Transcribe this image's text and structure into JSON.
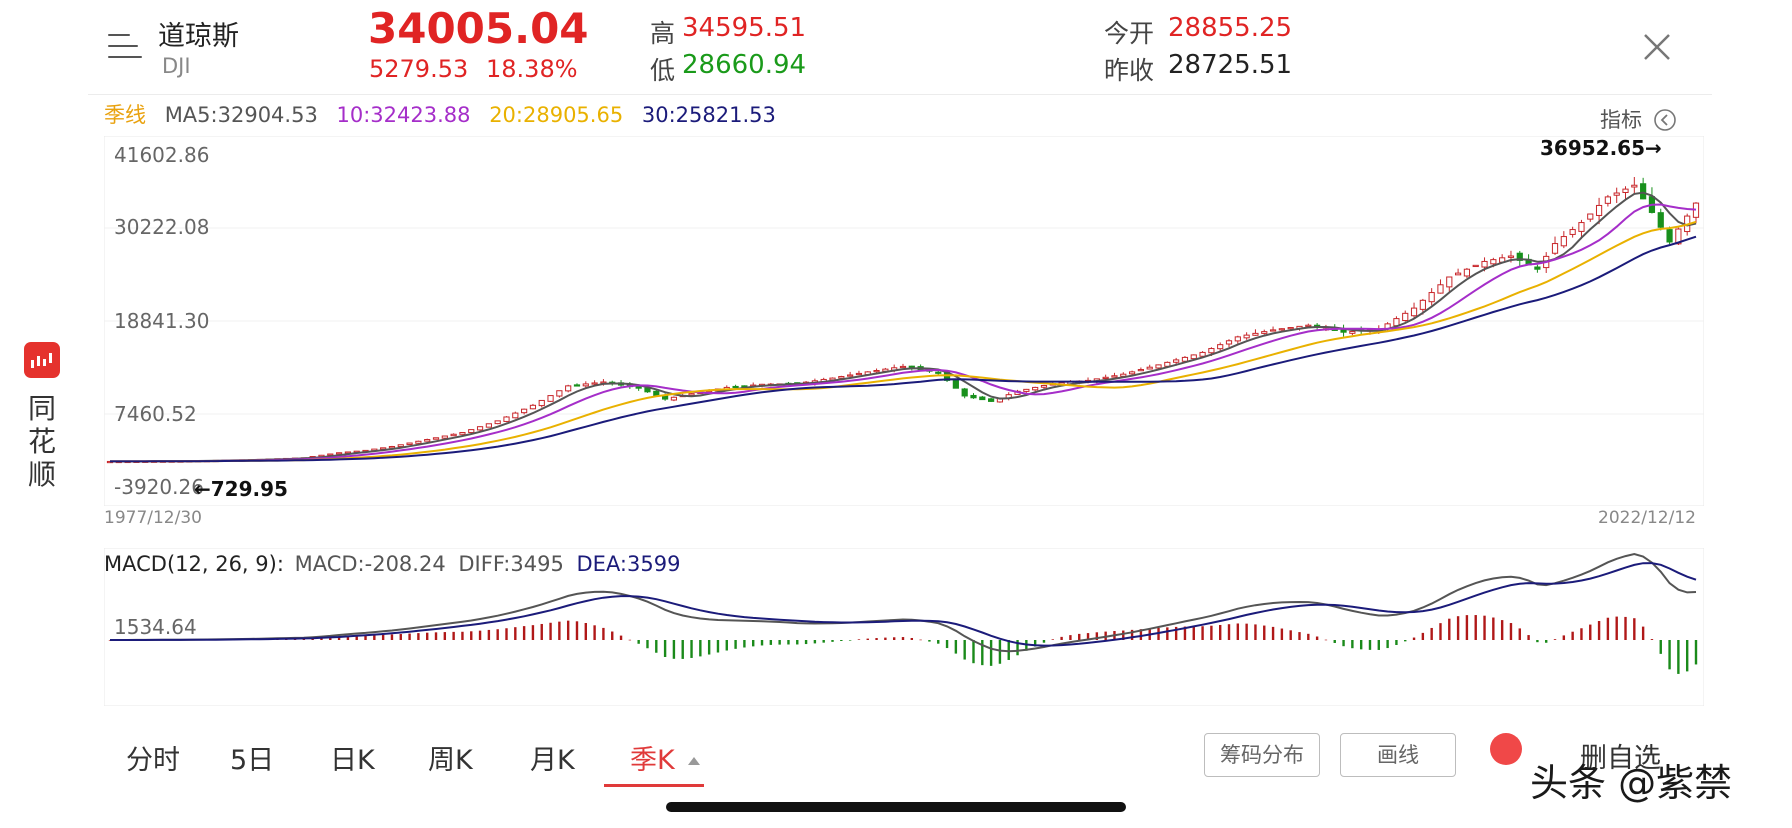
{
  "header": {
    "name": "道琼斯",
    "code": "DJI",
    "price": "34005.04",
    "change": "5279.53",
    "change_pct": "18.38%",
    "high_label": "高",
    "high_value": "34595.51",
    "low_label": "低",
    "low_value": "28660.94",
    "open_label": "今开",
    "open_value": "28855.25",
    "prev_close_label": "昨收",
    "prev_close_value": "28725.51",
    "colors": {
      "up": "#e02424",
      "down": "#1a9a1a",
      "text": "#222222"
    }
  },
  "ma_legend": {
    "period": "季线",
    "ma5": "MA5:32904.53",
    "ma10": "10:32423.88",
    "ma20": "20:28905.65",
    "ma30": "30:25821.53",
    "indicator_label": "指标",
    "colors": {
      "period": "#e9a20f",
      "ma5": "#555555",
      "ma10": "#a52ec9",
      "ma20": "#e9b100",
      "ma30": "#1b1b7a"
    }
  },
  "main_chart": {
    "y_labels": [
      "41602.86",
      "30222.08",
      "18841.30",
      "7460.52",
      "-3920.26"
    ],
    "max_marker": "36952.65→",
    "min_marker": "←729.95",
    "start_date": "1977/12/30",
    "end_date": "2022/12/12"
  },
  "macd": {
    "label": "MACD(12, 26, 9):",
    "macd_value": "MACD:-208.24",
    "diff_value": "DIFF:3495",
    "dea_value": "DEA:3599",
    "y_label": "1534.64",
    "colors": {
      "diff": "#555555",
      "dea": "#1b1b7a",
      "pos": "#b01818",
      "neg": "#1a8a1a"
    }
  },
  "tabs": [
    {
      "label": "分时"
    },
    {
      "label": "5日"
    },
    {
      "label": "日K"
    },
    {
      "label": "周K"
    },
    {
      "label": "月K"
    },
    {
      "label": "季K"
    }
  ],
  "active_tab": "季K",
  "buttons": {
    "chip_distribution": "筹码分布",
    "draw_line": "画线",
    "remove_watchlist": "删自选"
  },
  "sidebar": {
    "brand": [
      "同",
      "花",
      "顺"
    ]
  },
  "watermark": "头条 @紫禁",
  "chart_data": {
    "type": "candlestick",
    "x_range": [
      "1977/12/30",
      "2022/12/12"
    ],
    "ylim": [
      -3920.26,
      41602.86
    ],
    "y_ticks": [
      41602.86,
      30222.08,
      18841.3,
      7460.52,
      -3920.26
    ],
    "annotations": [
      {
        "text": "36952.65",
        "note": "max"
      },
      {
        "text": "729.95",
        "note": "min"
      }
    ],
    "series": [
      {
        "name": "MA5",
        "last": 32904.53
      },
      {
        "name": "MA10",
        "last": 32423.88
      },
      {
        "name": "MA20",
        "last": 28905.65
      },
      {
        "name": "MA30",
        "last": 25821.53
      }
    ],
    "close_path": [
      [
        0,
        780
      ],
      [
        8,
        830
      ],
      [
        16,
        1000
      ],
      [
        22,
        1250
      ],
      [
        26,
        1900
      ],
      [
        29,
        2200
      ],
      [
        32,
        2700
      ],
      [
        36,
        3600
      ],
      [
        40,
        4500
      ],
      [
        44,
        6000
      ],
      [
        48,
        8000
      ],
      [
        52,
        10500
      ],
      [
        56,
        11000
      ],
      [
        60,
        10200
      ],
      [
        63,
        8800
      ],
      [
        66,
        9500
      ],
      [
        70,
        10300
      ],
      [
        74,
        10700
      ],
      [
        78,
        10800
      ],
      [
        82,
        11500
      ],
      [
        86,
        12300
      ],
      [
        90,
        13000
      ],
      [
        94,
        12200
      ],
      [
        97,
        9200
      ],
      [
        100,
        8500
      ],
      [
        103,
        9800
      ],
      [
        107,
        10800
      ],
      [
        111,
        11200
      ],
      [
        115,
        12000
      ],
      [
        119,
        13200
      ],
      [
        124,
        14800
      ],
      [
        128,
        16800
      ],
      [
        132,
        17700
      ],
      [
        136,
        18300
      ],
      [
        140,
        17400
      ],
      [
        144,
        17800
      ],
      [
        148,
        20500
      ],
      [
        152,
        24500
      ],
      [
        156,
        26500
      ],
      [
        159,
        27200
      ],
      [
        162,
        25500
      ],
      [
        164,
        28800
      ],
      [
        167,
        31500
      ],
      [
        170,
        34800
      ],
      [
        173,
        36300
      ],
      [
        175,
        32800
      ],
      [
        177,
        29000
      ],
      [
        180,
        34005
      ]
    ],
    "macd_series": [
      {
        "name": "DIFF",
        "last": 3495
      },
      {
        "name": "DEA",
        "last": 3599
      },
      {
        "name": "MACD",
        "last": -208.24
      }
    ],
    "macd_ylabel": 1534.64
  }
}
